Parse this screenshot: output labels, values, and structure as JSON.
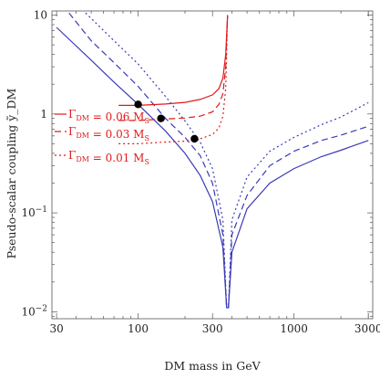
{
  "chart_data": {
    "type": "line",
    "xlabel": "DM mass in GeV",
    "ylabel": "Pseudo-scalar coupling ỹ_DM",
    "xscale": "log",
    "yscale": "log",
    "xlim": [
      28,
      3200
    ],
    "ylim": [
      0.0085,
      11
    ],
    "x_ticks": [
      30,
      100,
      300,
      1000,
      3000
    ],
    "x_tick_labels": [
      "30",
      "100",
      "300",
      "1000",
      "3000"
    ],
    "y_ticks": [
      0.01,
      0.1,
      1,
      10
    ],
    "y_tick_labels": [
      "10^−2",
      "10^−1",
      "1",
      "10"
    ],
    "grid": false,
    "legend_labels": [
      "Γ_DM = 0.06 M_S",
      "Γ_DM = 0.03 M_S",
      "Γ_DM = 0.01 M_S"
    ],
    "colors": {
      "relic": "#3a3ab8",
      "width": "#e01b1b",
      "point": "#000000"
    },
    "series": [
      {
        "group": "relic",
        "dash": "solid",
        "x": [
          30,
          50,
          70,
          100,
          150,
          200,
          250,
          300,
          350,
          370,
          380,
          400,
          500,
          700,
          1000,
          1500,
          2000,
          3000
        ],
        "y": [
          7.5,
          3.5,
          2.1,
          1.25,
          0.67,
          0.4,
          0.24,
          0.13,
          0.045,
          0.011,
          0.011,
          0.04,
          0.11,
          0.2,
          0.28,
          0.37,
          0.43,
          0.54
        ]
      },
      {
        "group": "relic",
        "dash": "dashed",
        "x": [
          36,
          50,
          70,
          100,
          150,
          200,
          250,
          300,
          350,
          370,
          380,
          400,
          500,
          700,
          1000,
          1500,
          2000,
          3000
        ],
        "y": [
          10.5,
          5.5,
          3.3,
          1.9,
          0.9,
          0.58,
          0.38,
          0.2,
          0.06,
          0.011,
          0.011,
          0.06,
          0.15,
          0.3,
          0.42,
          0.54,
          0.61,
          0.75
        ]
      },
      {
        "group": "relic",
        "dash": "dotted",
        "x": [
          46,
          70,
          100,
          150,
          200,
          250,
          300,
          350,
          370,
          380,
          400,
          500,
          700,
          1000,
          1500,
          2000,
          3000
        ],
        "y": [
          10.5,
          5.5,
          3.2,
          1.5,
          0.85,
          0.52,
          0.28,
          0.085,
          0.011,
          0.011,
          0.085,
          0.23,
          0.42,
          0.58,
          0.78,
          0.93,
          1.3
        ]
      },
      {
        "group": "width",
        "dash": "solid",
        "x": [
          75,
          100,
          150,
          200,
          250,
          300,
          330,
          350,
          365,
          375
        ],
        "y": [
          1.22,
          1.22,
          1.26,
          1.31,
          1.4,
          1.56,
          1.8,
          2.3,
          4.0,
          10
        ]
      },
      {
        "group": "width",
        "dash": "dashed",
        "x": [
          75,
          100,
          150,
          200,
          250,
          300,
          330,
          350,
          365,
          375
        ],
        "y": [
          0.86,
          0.86,
          0.89,
          0.91,
          0.95,
          1.05,
          1.25,
          1.6,
          3.0,
          10
        ]
      },
      {
        "group": "width",
        "dash": "dotted",
        "x": [
          75,
          100,
          150,
          200,
          250,
          300,
          330,
          350,
          365,
          375
        ],
        "y": [
          0.5,
          0.5,
          0.52,
          0.53,
          0.56,
          0.62,
          0.72,
          0.95,
          1.8,
          10
        ]
      }
    ],
    "points": [
      {
        "x": 100,
        "y": 1.25
      },
      {
        "x": 140,
        "y": 0.9
      },
      {
        "x": 230,
        "y": 0.56
      }
    ]
  }
}
